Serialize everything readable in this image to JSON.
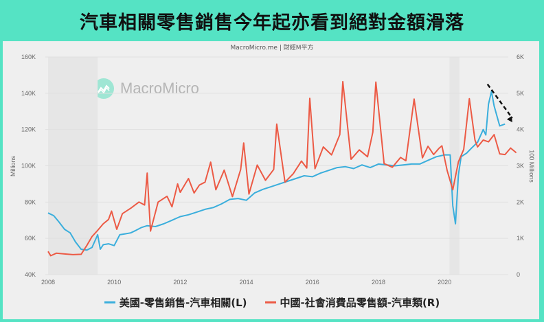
{
  "title": "汽車相關零售銷售今年起亦看到絕對金額滑落",
  "subtitle": "MacroMicro.me | 財經M平方",
  "watermark": "MacroMicro",
  "colors": {
    "accent": "#55e3c4",
    "us_series": "#3aaedc",
    "cn_series": "#ec5a45",
    "arrow": "#111111",
    "panel": "#efefef"
  },
  "chart_data": {
    "type": "line",
    "title": "汽車相關零售銷售今年起亦看到絕對金額滑落",
    "left_axis": {
      "label": "Millions",
      "ticks": [
        "40K",
        "60K",
        "80K",
        "100K",
        "120K",
        "140K",
        "160K"
      ],
      "range": [
        40000,
        160000
      ]
    },
    "right_axis": {
      "label": "100 Millions",
      "ticks": [
        "0",
        "1K",
        "2K",
        "3K",
        "4K",
        "5K",
        "6K"
      ],
      "range": [
        0,
        6000
      ]
    },
    "x_axis": {
      "ticks": [
        "2008",
        "2010",
        "2012",
        "2014",
        "2016",
        "2018",
        "2020"
      ],
      "range": [
        2008.0,
        2022.5
      ]
    },
    "legend_position": "bottom",
    "grid": true,
    "shaded_periods": [
      [
        2008.0,
        2009.5
      ],
      [
        2020.15,
        2020.45
      ]
    ],
    "series": [
      {
        "name": "美國-零售銷售-汽車相關(L)",
        "axis": "left",
        "x": [
          2008.0,
          2008.17,
          2008.33,
          2008.5,
          2008.67,
          2008.83,
          2009.0,
          2009.17,
          2009.33,
          2009.5,
          2009.58,
          2009.67,
          2009.83,
          2010.0,
          2010.17,
          2010.33,
          2010.5,
          2010.67,
          2010.83,
          2011.0,
          2011.25,
          2011.5,
          2011.75,
          2012.0,
          2012.25,
          2012.5,
          2012.75,
          2013.0,
          2013.25,
          2013.5,
          2013.75,
          2014.0,
          2014.25,
          2014.5,
          2014.75,
          2015.0,
          2015.25,
          2015.5,
          2015.75,
          2016.0,
          2016.25,
          2016.5,
          2016.75,
          2017.0,
          2017.25,
          2017.5,
          2017.75,
          2018.0,
          2018.25,
          2018.5,
          2018.75,
          2019.0,
          2019.25,
          2019.5,
          2019.75,
          2020.0,
          2020.17,
          2020.25,
          2020.33,
          2020.42,
          2020.5,
          2020.67,
          2020.83,
          2021.0,
          2021.17,
          2021.25,
          2021.33,
          2021.42,
          2021.5,
          2021.67,
          2021.83
        ],
        "values": [
          74000,
          72500,
          69000,
          65000,
          63000,
          58000,
          54000,
          53500,
          55000,
          62000,
          54000,
          56500,
          57000,
          56000,
          62000,
          62500,
          63000,
          64500,
          66000,
          67000,
          66500,
          68000,
          70000,
          72000,
          73000,
          74500,
          76000,
          77000,
          79000,
          81500,
          82000,
          81000,
          85000,
          87000,
          88500,
          90000,
          91500,
          93000,
          94500,
          94000,
          96000,
          97500,
          99000,
          99500,
          98500,
          100500,
          99000,
          101000,
          100500,
          100000,
          100500,
          101000,
          101000,
          103000,
          105000,
          106000,
          106000,
          78000,
          68000,
          95000,
          105000,
          107000,
          110000,
          113000,
          120000,
          117000,
          134000,
          141000,
          133000,
          122000,
          123000
        ]
      },
      {
        "name": "中國-社會消費品零售額-汽車類(R)",
        "axis": "right",
        "x": [
          2008.0,
          2008.08,
          2008.25,
          2008.5,
          2008.75,
          2009.0,
          2009.17,
          2009.33,
          2009.5,
          2009.67,
          2009.83,
          2009.92,
          2010.08,
          2010.25,
          2010.5,
          2010.75,
          2010.92,
          2011.0,
          2011.1,
          2011.33,
          2011.6,
          2011.75,
          2011.92,
          2012.0,
          2012.25,
          2012.42,
          2012.58,
          2012.75,
          2012.92,
          2013.08,
          2013.33,
          2013.58,
          2013.83,
          2013.92,
          2014.08,
          2014.33,
          2014.58,
          2014.83,
          2014.92,
          2015.17,
          2015.42,
          2015.67,
          2015.83,
          2015.92,
          2016.08,
          2016.33,
          2016.58,
          2016.83,
          2016.92,
          2017.17,
          2017.42,
          2017.67,
          2017.83,
          2017.92,
          2018.17,
          2018.42,
          2018.67,
          2018.83,
          2019.08,
          2019.33,
          2019.5,
          2019.67,
          2019.83,
          2019.92,
          2020.08,
          2020.25,
          2020.42,
          2020.58,
          2020.75,
          2020.92,
          2021.0,
          2021.17,
          2021.33,
          2021.5,
          2021.67,
          2021.83,
          2022.0,
          2022.17
        ],
        "values": [
          640,
          520,
          590,
          570,
          550,
          560,
          800,
          1050,
          1220,
          1400,
          1520,
          1750,
          1250,
          1680,
          1830,
          2000,
          1920,
          2800,
          1200,
          2000,
          2160,
          1870,
          2500,
          2270,
          2650,
          2250,
          2470,
          2550,
          3100,
          2340,
          2880,
          2150,
          2900,
          3630,
          2220,
          3020,
          2600,
          2900,
          4150,
          2550,
          2780,
          3130,
          2940,
          4860,
          2920,
          3520,
          3300,
          3860,
          5320,
          3180,
          3440,
          3250,
          3930,
          5310,
          3060,
          2960,
          3230,
          3140,
          4840,
          3220,
          3540,
          3310,
          3480,
          3550,
          2870,
          2340,
          3110,
          3450,
          4850,
          3710,
          3520,
          3710,
          3660,
          3860,
          3330,
          3310,
          3490,
          3360
        ]
      }
    ],
    "annotation": {
      "type": "dashed-arrow",
      "from": [
        2021.3,
        145000
      ],
      "to": [
        2022.05,
        124000
      ]
    }
  },
  "legend": [
    {
      "label": "美國-零售銷售-汽車相關(L)",
      "color": "#3aaedc"
    },
    {
      "label": "中國-社會消費品零售額-汽車類(R)",
      "color": "#ec5a45"
    }
  ]
}
